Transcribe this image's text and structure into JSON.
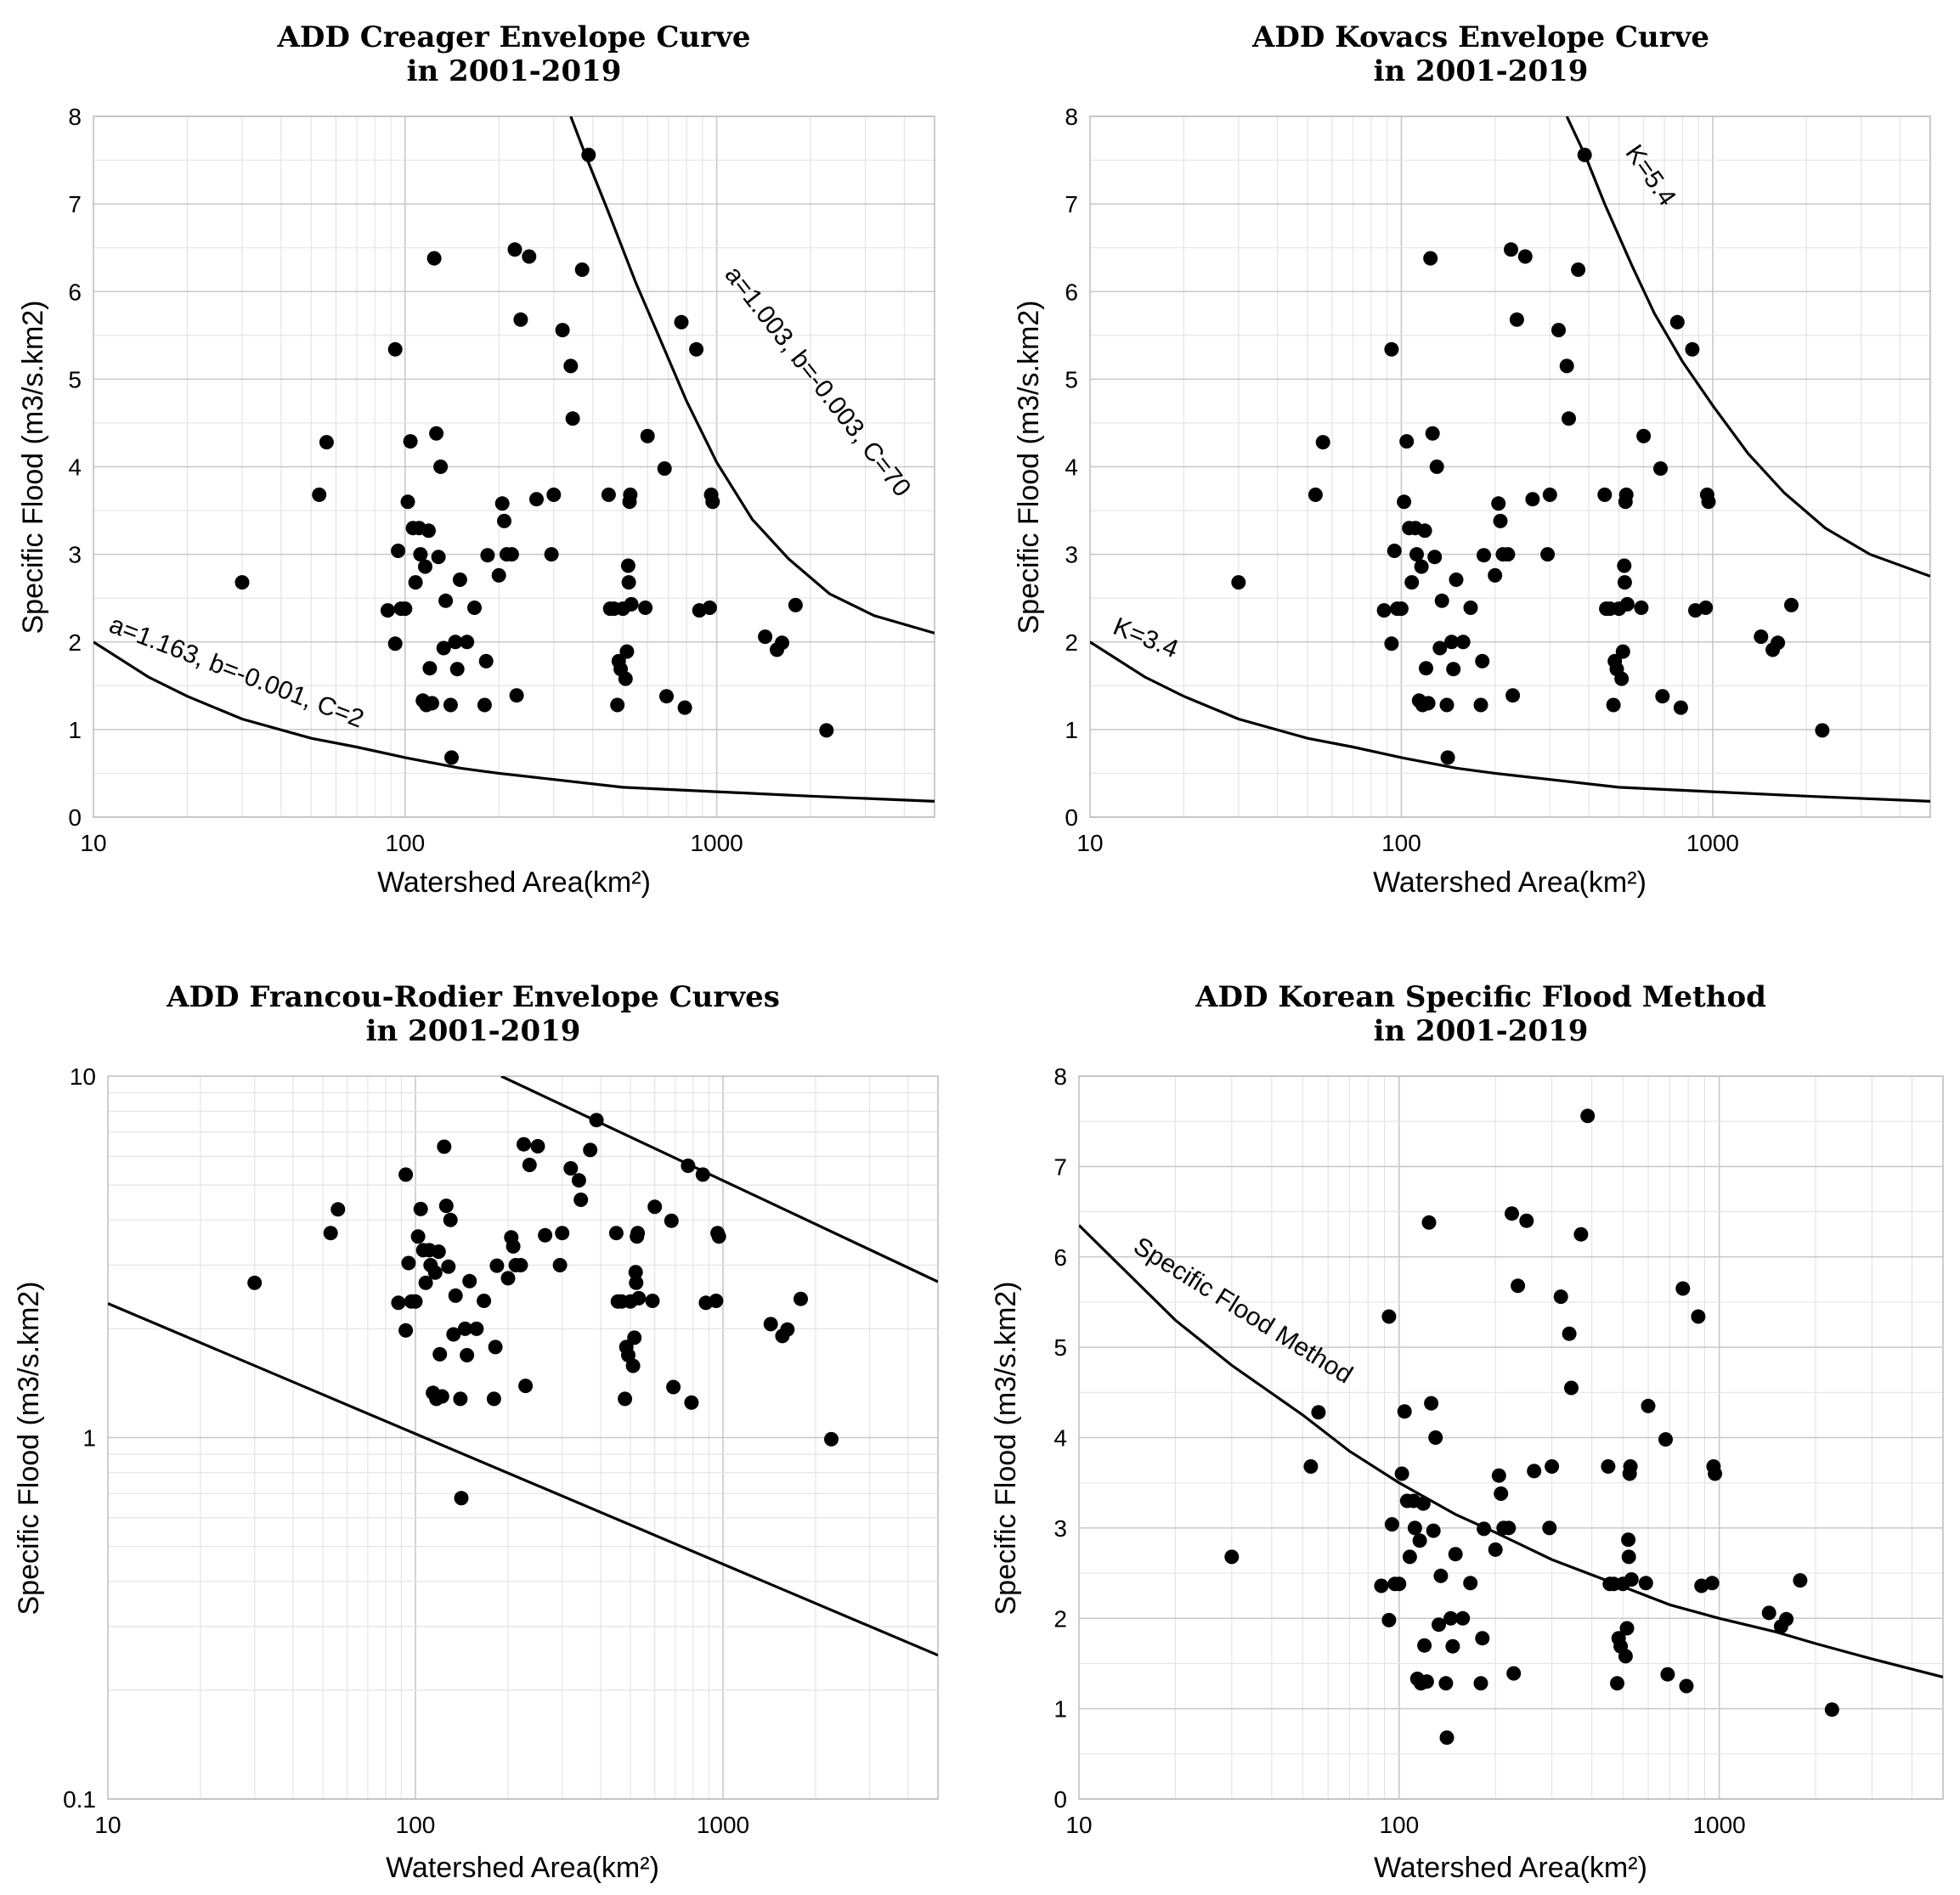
{
  "chart_data": [
    {
      "type": "scatter",
      "title": [
        "ADD Creager Envelope Curve",
        "in 2001-2019"
      ],
      "xlabel": "Watershed Area(km²)",
      "ylabel": "Specific Flood (m3/s.km2)",
      "xscale": "log",
      "xlim": [
        10,
        5000
      ],
      "ylim": [
        0,
        8
      ],
      "x_ticks": [
        "10",
        "100",
        "1000"
      ],
      "y_ticks": [
        "0",
        "1",
        "2",
        "3",
        "4",
        "5",
        "6",
        "7",
        "8"
      ],
      "grid": true,
      "curves": [
        {
          "label": "a=1.003, b=-0.003, C=70",
          "points": [
            [
              340,
              8.0
            ],
            [
              380,
              7.55
            ],
            [
              450,
              6.9
            ],
            [
              550,
              6.1
            ],
            [
              650,
              5.5
            ],
            [
              800,
              4.75
            ],
            [
              1000,
              4.05
            ],
            [
              1300,
              3.4
            ],
            [
              1700,
              2.95
            ],
            [
              2300,
              2.55
            ],
            [
              3200,
              2.3
            ],
            [
              5000,
              2.1
            ]
          ]
        },
        {
          "label": "a=1.163, b=-0.001, C=2",
          "points": [
            [
              10,
              2.0
            ],
            [
              15,
              1.6
            ],
            [
              20,
              1.38
            ],
            [
              30,
              1.12
            ],
            [
              50,
              0.9
            ],
            [
              70,
              0.8
            ],
            [
              100,
              0.68
            ],
            [
              150,
              0.56
            ],
            [
              200,
              0.5
            ],
            [
              300,
              0.43
            ],
            [
              500,
              0.34
            ],
            [
              1000,
              0.29
            ],
            [
              2000,
              0.24
            ],
            [
              5000,
              0.18
            ]
          ]
        }
      ]
    },
    {
      "type": "scatter",
      "title": [
        "ADD Kovacs Envelope Curve",
        "in 2001-2019"
      ],
      "xlabel": "Watershed Area(km²)",
      "ylabel": "Specific Flood (m3/s.km2)",
      "xscale": "log",
      "xlim": [
        10,
        5000
      ],
      "ylim": [
        0,
        8
      ],
      "x_ticks": [
        "10",
        "100",
        "1000"
      ],
      "y_ticks": [
        "0",
        "1",
        "2",
        "3",
        "4",
        "5",
        "6",
        "7",
        "8"
      ],
      "grid": true,
      "curves": [
        {
          "label": "K=5.4",
          "points": [
            [
              340,
              8.0
            ],
            [
              390,
              7.55
            ],
            [
              450,
              7.0
            ],
            [
              550,
              6.3
            ],
            [
              650,
              5.75
            ],
            [
              800,
              5.2
            ],
            [
              1000,
              4.7
            ],
            [
              1300,
              4.15
            ],
            [
              1700,
              3.7
            ],
            [
              2300,
              3.3
            ],
            [
              3200,
              3.0
            ],
            [
              5000,
              2.75
            ]
          ]
        },
        {
          "label": "K=3.4",
          "points": [
            [
              10,
              2.0
            ],
            [
              15,
              1.6
            ],
            [
              20,
              1.38
            ],
            [
              30,
              1.12
            ],
            [
              50,
              0.9
            ],
            [
              70,
              0.8
            ],
            [
              100,
              0.68
            ],
            [
              150,
              0.56
            ],
            [
              200,
              0.5
            ],
            [
              300,
              0.43
            ],
            [
              500,
              0.34
            ],
            [
              1000,
              0.29
            ],
            [
              2000,
              0.24
            ],
            [
              5000,
              0.18
            ]
          ]
        }
      ]
    },
    {
      "type": "scatter",
      "title": [
        "ADD Francou-Rodier Envelope Curves",
        "in 2001-2019"
      ],
      "xlabel": "Watershed Area(km²)",
      "ylabel": "Specific Flood (m3/s.km2)",
      "xscale": "log",
      "yscale": "log",
      "xlim": [
        10,
        5000
      ],
      "ylim": [
        0.1,
        10
      ],
      "x_ticks": [
        "10",
        "100",
        "1000"
      ],
      "y_ticks": [
        "0.1",
        "1",
        "10"
      ],
      "grid": true,
      "curves": [
        {
          "label": "",
          "points": [
            [
              190,
              10
            ],
            [
              5000,
              2.7
            ]
          ]
        },
        {
          "label": "",
          "points": [
            [
              10,
              2.35
            ],
            [
              5000,
              0.25
            ]
          ]
        }
      ]
    },
    {
      "type": "scatter",
      "title": [
        "ADD  Korean Specific Flood Method",
        "in 2001-2019"
      ],
      "xlabel": "Watershed Area(km²)",
      "ylabel": "Specific Flood (m3/s.km2)",
      "xscale": "log",
      "xlim": [
        10,
        5000
      ],
      "ylim": [
        0,
        8
      ],
      "x_ticks": [
        "10",
        "100",
        "1000"
      ],
      "y_ticks": [
        "0",
        "1",
        "2",
        "3",
        "4",
        "5",
        "6",
        "7",
        "8"
      ],
      "grid": true,
      "curves": [
        {
          "label": "Specific Flood Method",
          "points": [
            [
              10,
              6.35
            ],
            [
              20,
              5.3
            ],
            [
              30,
              4.8
            ],
            [
              50,
              4.25
            ],
            [
              70,
              3.85
            ],
            [
              100,
              3.5
            ],
            [
              150,
              3.15
            ],
            [
              200,
              2.95
            ],
            [
              300,
              2.65
            ],
            [
              500,
              2.35
            ],
            [
              700,
              2.15
            ],
            [
              1000,
              2.0
            ],
            [
              1500,
              1.85
            ],
            [
              2000,
              1.72
            ],
            [
              3000,
              1.55
            ],
            [
              5000,
              1.35
            ]
          ]
        }
      ]
    }
  ],
  "shared_points": [
    [
      30,
      2.68
    ],
    [
      53,
      3.68
    ],
    [
      56,
      4.28
    ],
    [
      93,
      5.34
    ],
    [
      88,
      2.36
    ],
    [
      93,
      1.98
    ],
    [
      95,
      3.04
    ],
    [
      97,
      2.38
    ],
    [
      100,
      2.38
    ],
    [
      102,
      3.6
    ],
    [
      104,
      4.29
    ],
    [
      106,
      3.3
    ],
    [
      108,
      2.68
    ],
    [
      111,
      3.3
    ],
    [
      112,
      3.0
    ],
    [
      114,
      1.33
    ],
    [
      116,
      2.86
    ],
    [
      117,
      1.28
    ],
    [
      119,
      3.27
    ],
    [
      120,
      1.7
    ],
    [
      122,
      1.3
    ],
    [
      124,
      6.38
    ],
    [
      126,
      4.38
    ],
    [
      128,
      2.97
    ],
    [
      130,
      4.0
    ],
    [
      133,
      1.93
    ],
    [
      135,
      2.47
    ],
    [
      140,
      1.28
    ],
    [
      141,
      0.68
    ],
    [
      145,
      2.0
    ],
    [
      147,
      1.69
    ],
    [
      150,
      2.71
    ],
    [
      158,
      2.0
    ],
    [
      167,
      2.39
    ],
    [
      180,
      1.28
    ],
    [
      182,
      1.78
    ],
    [
      184,
      2.99
    ],
    [
      200,
      2.76
    ],
    [
      205,
      3.58
    ],
    [
      208,
      3.38
    ],
    [
      212,
      3.0
    ],
    [
      220,
      3.0
    ],
    [
      225,
      6.48
    ],
    [
      228,
      1.39
    ],
    [
      235,
      5.68
    ],
    [
      250,
      6.4
    ],
    [
      264,
      3.63
    ],
    [
      295,
      3.0
    ],
    [
      300,
      3.68
    ],
    [
      320,
      5.56
    ],
    [
      340,
      5.15
    ],
    [
      345,
      4.55
    ],
    [
      370,
      6.25
    ],
    [
      388,
      7.56
    ],
    [
      450,
      3.68
    ],
    [
      455,
      2.38
    ],
    [
      468,
      2.38
    ],
    [
      480,
      1.28
    ],
    [
      485,
      1.78
    ],
    [
      492,
      1.69
    ],
    [
      500,
      2.38
    ],
    [
      510,
      1.58
    ],
    [
      515,
      1.89
    ],
    [
      520,
      2.87
    ],
    [
      522,
      2.68
    ],
    [
      525,
      3.6
    ],
    [
      528,
      3.68
    ],
    [
      532,
      2.43
    ],
    [
      590,
      2.39
    ],
    [
      600,
      4.35
    ],
    [
      680,
      3.98
    ],
    [
      690,
      1.38
    ],
    [
      770,
      5.65
    ],
    [
      790,
      1.25
    ],
    [
      860,
      5.34
    ],
    [
      880,
      2.36
    ],
    [
      950,
      2.39
    ],
    [
      960,
      3.68
    ],
    [
      970,
      3.6
    ],
    [
      1430,
      2.06
    ],
    [
      1560,
      1.91
    ],
    [
      1620,
      1.99
    ],
    [
      1790,
      2.42
    ],
    [
      2250,
      0.99
    ]
  ]
}
